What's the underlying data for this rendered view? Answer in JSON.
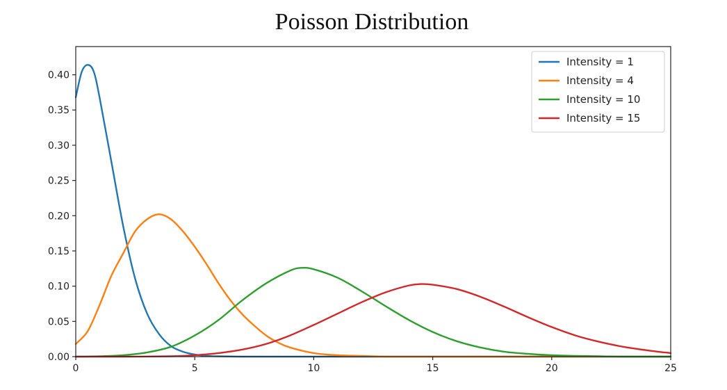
{
  "chart_data": {
    "type": "line",
    "title": "Poisson Distribution",
    "xlabel": "",
    "ylabel": "",
    "xlim": [
      0,
      25
    ],
    "ylim": [
      0,
      0.44
    ],
    "x_ticks": [
      0,
      5,
      10,
      15,
      20,
      25
    ],
    "x_tick_labels": [
      "0",
      "5",
      "10",
      "15",
      "20",
      "25"
    ],
    "y_ticks": [
      0,
      0.05,
      0.1,
      0.15,
      0.2,
      0.25,
      0.3,
      0.35,
      0.4
    ],
    "y_tick_labels": [
      "0.00",
      "0.05",
      "0.10",
      "0.15",
      "0.20",
      "0.25",
      "0.30",
      "0.35",
      "0.40"
    ],
    "grid": false,
    "legend_position": "top-right",
    "series": [
      {
        "name": "Intensity = 1",
        "color": "#1f77b4",
        "x": [
          0,
          0.25,
          0.5,
          0.75,
          1,
          1.5,
          2,
          2.5,
          3,
          3.5,
          4,
          4.5,
          5,
          5.5,
          6,
          7,
          8,
          10,
          15,
          20,
          25
        ],
        "y": [
          0.368,
          0.404,
          0.414,
          0.405,
          0.368,
          0.276,
          0.184,
          0.11,
          0.061,
          0.032,
          0.015,
          0.007,
          0.003,
          0.001,
          0.0005,
          0,
          0,
          0,
          0,
          0,
          0
        ]
      },
      {
        "name": "Intensity = 4",
        "color": "#ff7f0e",
        "x": [
          0,
          0.5,
          1,
          1.5,
          2,
          2.5,
          3,
          3.5,
          4,
          4.5,
          5,
          5.5,
          6,
          6.5,
          7,
          7.5,
          8,
          8.5,
          9,
          10,
          11,
          12,
          13,
          14,
          15,
          20,
          25
        ],
        "y": [
          0.018,
          0.036,
          0.073,
          0.115,
          0.147,
          0.178,
          0.195,
          0.202,
          0.195,
          0.178,
          0.156,
          0.131,
          0.104,
          0.08,
          0.06,
          0.044,
          0.03,
          0.02,
          0.013,
          0.005,
          0.002,
          0.001,
          0,
          0,
          0,
          0,
          0
        ]
      },
      {
        "name": "Intensity = 10",
        "color": "#2ca02c",
        "x": [
          0,
          1,
          2,
          3,
          4,
          5,
          6,
          7,
          8,
          9,
          9.5,
          10,
          11,
          12,
          13,
          14,
          15,
          16,
          17,
          18,
          19,
          20,
          21,
          22,
          23,
          25
        ],
        "y": [
          0,
          0.0005,
          0.002,
          0.006,
          0.014,
          0.03,
          0.052,
          0.08,
          0.104,
          0.122,
          0.126,
          0.124,
          0.112,
          0.093,
          0.072,
          0.052,
          0.035,
          0.022,
          0.013,
          0.007,
          0.004,
          0.002,
          0.001,
          0.0005,
          0,
          0
        ]
      },
      {
        "name": "Intensity = 15",
        "color": "#d62728",
        "x": [
          0,
          2,
          4,
          5,
          6,
          7,
          8,
          9,
          10,
          11,
          12,
          13,
          14,
          14.5,
          15,
          16,
          17,
          18,
          19,
          20,
          21,
          22,
          23,
          24,
          25
        ],
        "y": [
          0,
          0,
          0.0005,
          0.002,
          0.005,
          0.01,
          0.018,
          0.03,
          0.045,
          0.061,
          0.077,
          0.091,
          0.101,
          0.103,
          0.102,
          0.096,
          0.085,
          0.071,
          0.056,
          0.042,
          0.03,
          0.021,
          0.014,
          0.009,
          0.005
        ]
      }
    ]
  }
}
